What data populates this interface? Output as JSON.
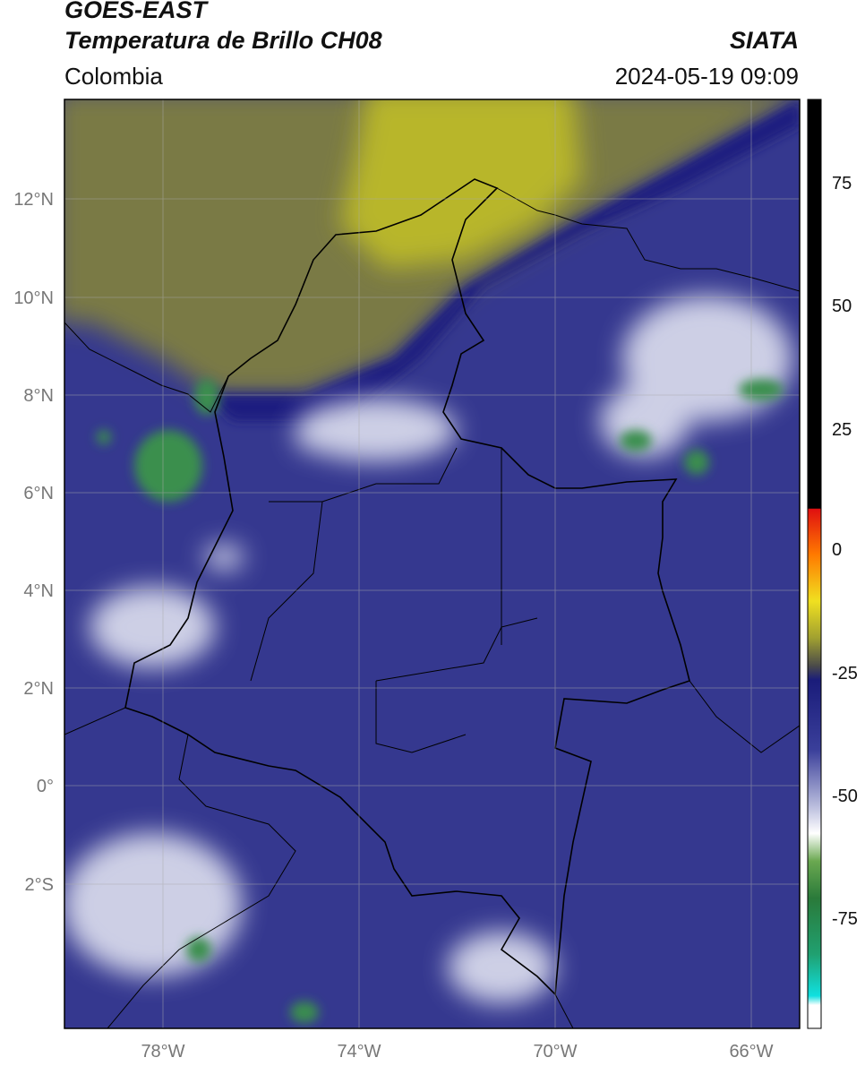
{
  "header": {
    "satellite": "GOES-EAST",
    "product": "Temperatura de Brillo CH08",
    "agency": "SIATA",
    "region": "Colombia",
    "datetime": "2024-05-19 09:09"
  },
  "map": {
    "lat_range": [
      -5.2,
      13.95
    ],
    "lon_range": [
      -80,
      -65
    ],
    "lat_ticks": [
      {
        "value": 12,
        "label": "12°N"
      },
      {
        "value": 10,
        "label": "10°N"
      },
      {
        "value": 8,
        "label": "8°N"
      },
      {
        "value": 6,
        "label": "6°N"
      },
      {
        "value": 4,
        "label": "4°N"
      },
      {
        "value": 2,
        "label": "2°N"
      },
      {
        "value": 0,
        "label": "0°"
      },
      {
        "value": -2,
        "label": "2°S"
      }
    ],
    "lon_ticks": [
      {
        "value": -78,
        "label": "78°W"
      },
      {
        "value": -74,
        "label": "74°W"
      },
      {
        "value": -70,
        "label": "70°W"
      },
      {
        "value": -66,
        "label": "66°W"
      }
    ],
    "colors": {
      "background": "#35388f",
      "dry_air": "#7a7a45",
      "dry_core": "#b8b62b",
      "moist_band": "#1c1f80",
      "cloud_white": "#e8eaf5",
      "deep_convection": "#3b8f4d",
      "border": "#000000"
    }
  },
  "colorbar": {
    "ticks": [
      {
        "value": 75,
        "label": "75"
      },
      {
        "value": 50,
        "label": "50"
      },
      {
        "value": 25,
        "label": "25"
      },
      {
        "value": 0,
        "label": "0"
      },
      {
        "value": -25,
        "label": "-25"
      },
      {
        "value": -50,
        "label": "-50"
      },
      {
        "value": -75,
        "label": "-75"
      }
    ]
  }
}
